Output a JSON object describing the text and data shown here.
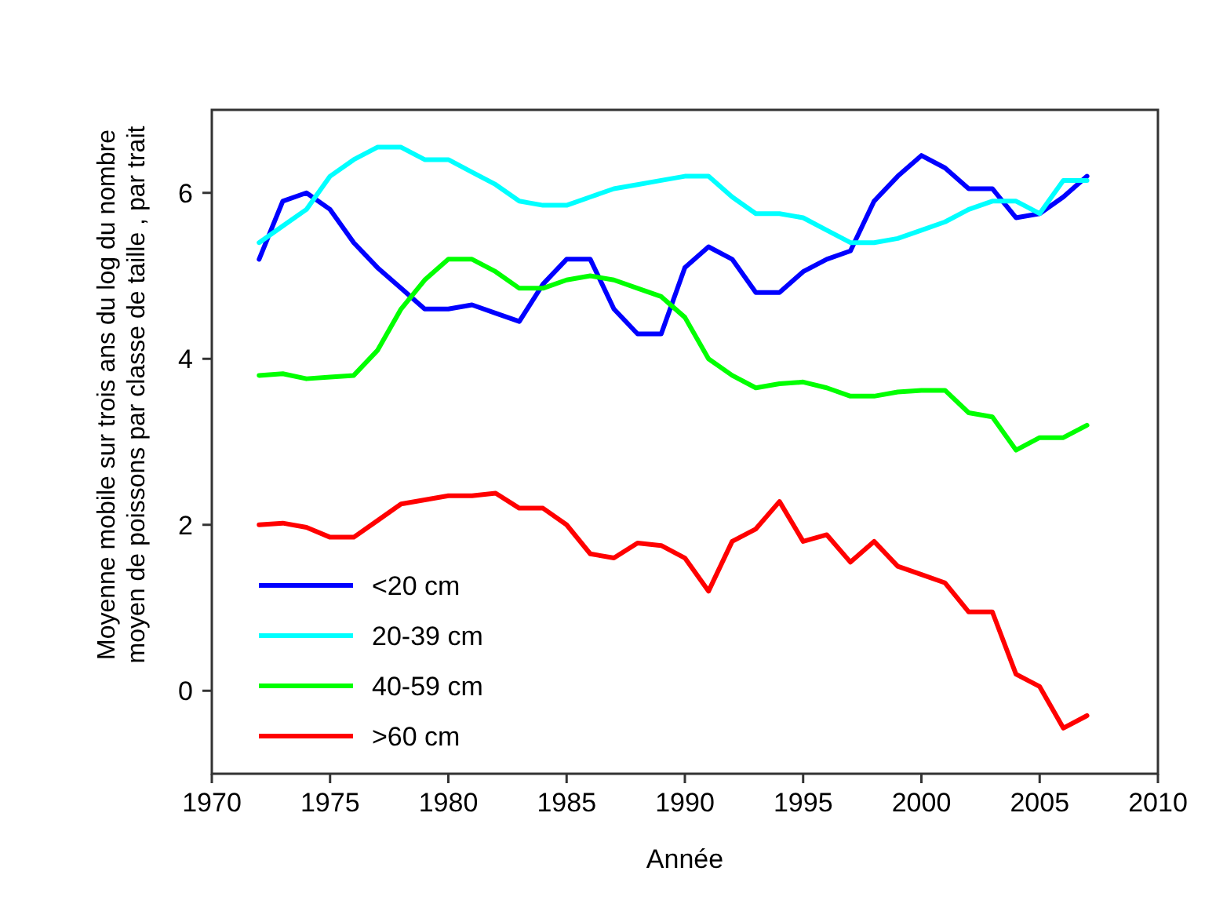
{
  "chart_data": {
    "type": "line",
    "xlabel": "Année",
    "ylabel": "Moyenne mobile sur trois ans du log du nombre\nmoyen de poissons par classe de taille , par trait",
    "x": [
      1972,
      1973,
      1974,
      1975,
      1976,
      1977,
      1978,
      1979,
      1980,
      1981,
      1982,
      1983,
      1984,
      1985,
      1986,
      1987,
      1988,
      1989,
      1990,
      1991,
      1992,
      1993,
      1994,
      1995,
      1996,
      1997,
      1998,
      1999,
      2000,
      2001,
      2002,
      2003,
      2004,
      2005,
      2006,
      2007
    ],
    "series": [
      {
        "name": "<20 cm",
        "color": "#0000ff",
        "values": [
          5.2,
          5.9,
          6.0,
          5.8,
          5.4,
          5.1,
          4.85,
          4.6,
          4.6,
          4.65,
          4.55,
          4.45,
          4.9,
          5.2,
          5.2,
          4.6,
          4.3,
          4.3,
          5.1,
          5.35,
          5.2,
          4.8,
          4.8,
          5.05,
          5.2,
          5.3,
          5.9,
          6.2,
          6.45,
          6.3,
          6.05,
          6.05,
          5.7,
          5.75,
          5.95,
          6.2
        ]
      },
      {
        "name": "20-39 cm",
        "color": "#00ffff",
        "values": [
          5.4,
          5.6,
          5.8,
          6.2,
          6.4,
          6.55,
          6.55,
          6.4,
          6.4,
          6.25,
          6.1,
          5.9,
          5.85,
          5.85,
          5.95,
          6.05,
          6.1,
          6.15,
          6.2,
          6.2,
          5.95,
          5.75,
          5.75,
          5.7,
          5.55,
          5.4,
          5.4,
          5.45,
          5.55,
          5.65,
          5.8,
          5.9,
          5.9,
          5.75,
          6.15,
          6.15
        ]
      },
      {
        "name": "40-59 cm",
        "color": "#00ff00",
        "values": [
          3.8,
          3.82,
          3.76,
          3.78,
          3.8,
          4.1,
          4.6,
          4.95,
          5.2,
          5.2,
          5.05,
          4.85,
          4.85,
          4.95,
          5.0,
          4.95,
          4.85,
          4.75,
          4.5,
          4.0,
          3.8,
          3.65,
          3.7,
          3.72,
          3.65,
          3.55,
          3.55,
          3.6,
          3.62,
          3.62,
          3.35,
          3.3,
          2.9,
          3.05,
          3.05,
          3.2
        ]
      },
      {
        "name": ">60 cm",
        "color": "#ff0000",
        "values": [
          2.0,
          2.02,
          1.97,
          1.85,
          1.85,
          2.05,
          2.25,
          2.3,
          2.35,
          2.35,
          2.38,
          2.2,
          2.2,
          2.0,
          1.65,
          1.6,
          1.78,
          1.75,
          1.6,
          1.2,
          1.8,
          1.95,
          2.28,
          1.8,
          1.88,
          1.55,
          1.8,
          1.5,
          1.4,
          1.3,
          0.95,
          0.95,
          0.2,
          0.05,
          -0.45,
          -0.3
        ]
      }
    ],
    "xlim": [
      1970,
      2010
    ],
    "xticks": [
      1970,
      1975,
      1980,
      1985,
      1990,
      1995,
      2000,
      2005,
      2010
    ],
    "ylim": [
      -1,
      7
    ],
    "yticks": [
      0,
      2,
      4,
      6
    ],
    "grid": false,
    "legend": "bottom left",
    "line_style": "solid"
  }
}
